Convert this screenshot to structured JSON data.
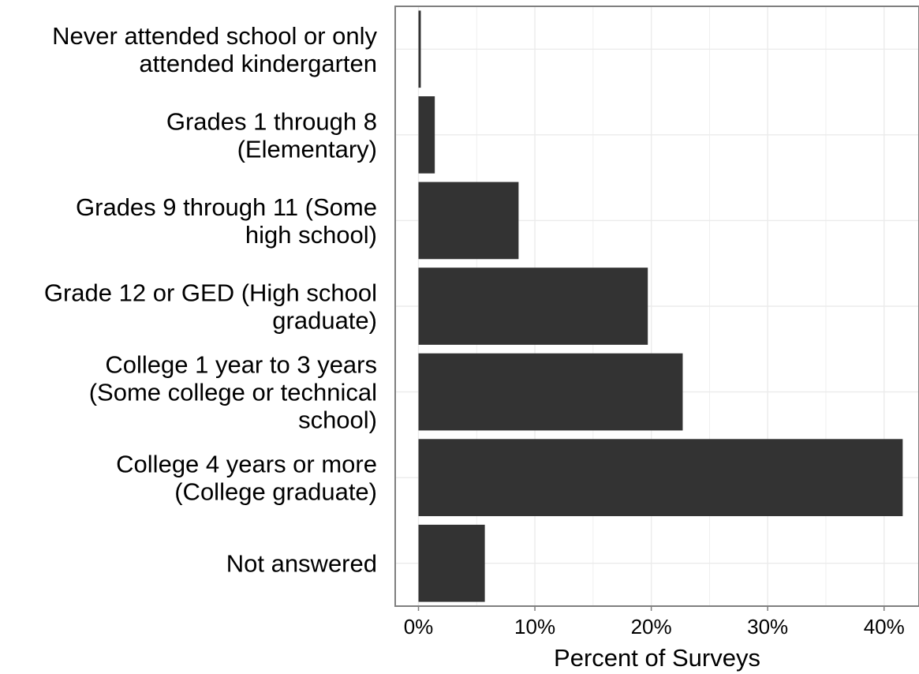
{
  "chart_data": {
    "type": "bar",
    "orientation": "horizontal",
    "categories": [
      [
        "Never attended school or only",
        "attended kindergarten"
      ],
      [
        "Grades 1 through 8",
        "(Elementary)"
      ],
      [
        "Grades 9 through 11 (Some",
        "high school)"
      ],
      [
        "Grade 12 or GED (High school",
        "graduate)"
      ],
      [
        "College 1 year to 3 years",
        "(Some college or technical",
        "school)"
      ],
      [
        "College 4 years or more",
        "(College graduate)"
      ],
      [
        "Not answered"
      ]
    ],
    "values": [
      0.2,
      1.4,
      8.6,
      19.7,
      22.7,
      41.6,
      5.7
    ],
    "xlabel": "Percent of Surveys",
    "ylabel": "",
    "xlim": [
      -2,
      43
    ],
    "xticks": [
      0,
      10,
      20,
      30,
      40
    ],
    "xtick_labels": [
      "0%",
      "10%",
      "20%",
      "30%",
      "40%"
    ],
    "grid": true,
    "bar_color": "#333333",
    "grid_color": "#ebebeb",
    "frame_color": "#7f7f7f"
  }
}
